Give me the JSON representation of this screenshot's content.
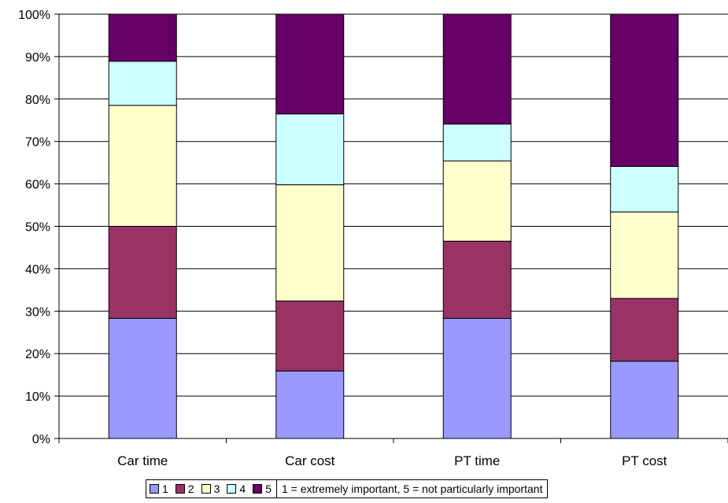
{
  "chart_data": {
    "type": "bar",
    "stacked": true,
    "categories": [
      "Car time",
      "Car cost",
      "PT time",
      "PT cost"
    ],
    "ylim": [
      0,
      100
    ],
    "yticks": [
      "0%",
      "10%",
      "20%",
      "30%",
      "40%",
      "50%",
      "60%",
      "70%",
      "80%",
      "90%",
      "100%"
    ],
    "grid": true,
    "legend_position": "bottom",
    "series": [
      {
        "name": "1",
        "color": "#9999ff",
        "values": [
          28.3,
          15.9,
          28.3,
          18.2
        ]
      },
      {
        "name": "2",
        "color": "#993366",
        "values": [
          21.7,
          16.5,
          18.2,
          14.8
        ]
      },
      {
        "name": "3",
        "color": "#ffffcc",
        "values": [
          28.5,
          27.4,
          18.9,
          20.4
        ]
      },
      {
        "name": "4",
        "color": "#ccffff",
        "values": [
          10.4,
          16.7,
          8.7,
          10.7
        ]
      },
      {
        "name": "5",
        "color": "#660066",
        "values": [
          11.1,
          23.5,
          25.9,
          35.9
        ]
      }
    ],
    "note": "1 = extremely important, 5 = not particularly important"
  }
}
